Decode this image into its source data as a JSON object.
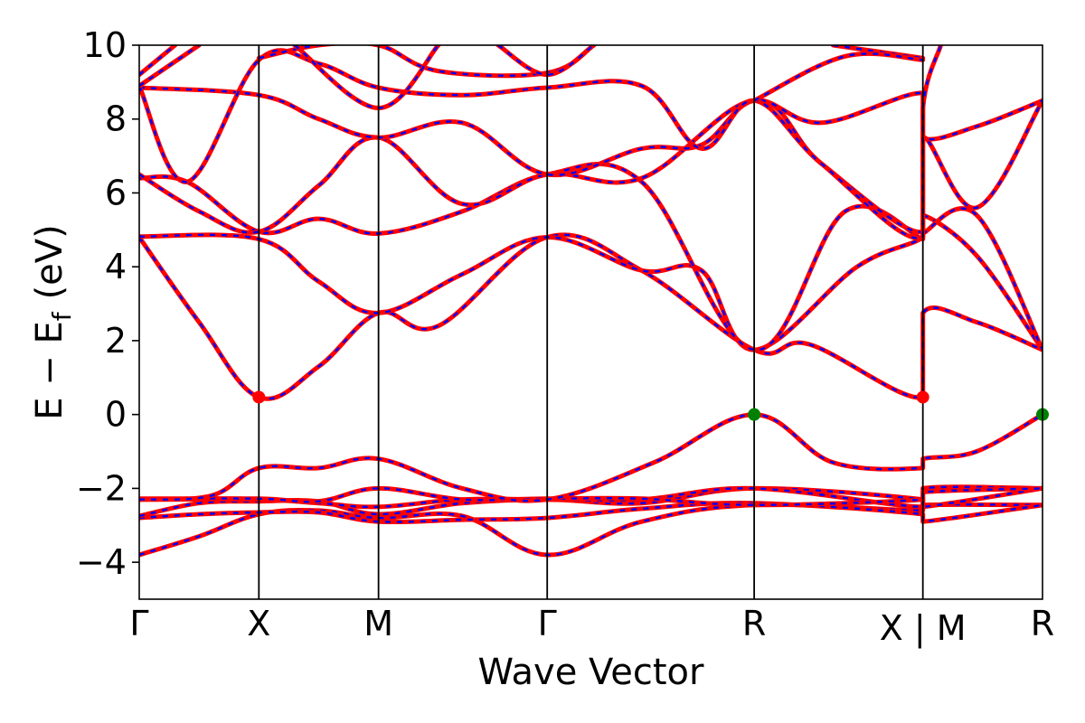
{
  "chart_data": {
    "type": "line",
    "title": "",
    "xlabel": "Wave Vector",
    "ylabel_main": "E − E",
    "ylabel_sub": "f",
    "ylabel_unit": "(eV)",
    "ylim": [
      -5,
      10
    ],
    "yticks": [
      -4,
      -2,
      0,
      2,
      4,
      6,
      8,
      10
    ],
    "ytick_labels": [
      "−4",
      "−2",
      "0",
      "2",
      "4",
      "6",
      "8",
      "10"
    ],
    "xlim": [
      0,
      7.55
    ],
    "kpoints": [
      {
        "label": "Γ",
        "x": 0.0
      },
      {
        "label": "X",
        "x": 1.0
      },
      {
        "label": "M",
        "x": 2.0
      },
      {
        "label": "Γ",
        "x": 3.41
      },
      {
        "label": "R",
        "x": 5.14
      },
      {
        "label": "X | M",
        "x": 6.55
      },
      {
        "label": "R",
        "x": 7.55
      }
    ],
    "grid": false,
    "legend": "none",
    "band_style": {
      "primary_color": "#ff0000",
      "overlay_color": "#0000ff",
      "overlay_dash": "dashed"
    },
    "special_points": [
      {
        "kind": "CBM",
        "color": "#ff0000",
        "x": 1.0,
        "y": 0.47
      },
      {
        "kind": "CBM",
        "color": "#ff0000",
        "x": 6.55,
        "y": 0.47
      },
      {
        "kind": "VBM",
        "color": "#008000",
        "x": 5.14,
        "y": 0.0
      },
      {
        "kind": "VBM",
        "color": "#008000",
        "x": 7.55,
        "y": 0.0
      }
    ],
    "series": [
      {
        "points": [
          [
            0,
            -3.8
          ],
          [
            0.5,
            -3.3
          ],
          [
            1,
            -2.7
          ],
          [
            1.5,
            -2.6
          ],
          [
            2,
            -2.8
          ],
          [
            2.7,
            -2.75
          ],
          [
            3.41,
            -3.8
          ],
          [
            4.2,
            -2.9
          ],
          [
            5.14,
            -2.45
          ],
          [
            6.55,
            -2.6
          ],
          [
            6.55,
            -2.45
          ],
          [
            7.55,
            -2.45
          ]
        ]
      },
      {
        "points": [
          [
            0,
            -2.8
          ],
          [
            0.5,
            -2.7
          ],
          [
            1,
            -2.65
          ],
          [
            1.5,
            -2.65
          ],
          [
            2,
            -2.9
          ],
          [
            2.7,
            -2.85
          ],
          [
            3.41,
            -2.8
          ],
          [
            4.2,
            -2.55
          ],
          [
            5.14,
            -2.4
          ],
          [
            6.55,
            -2.7
          ],
          [
            6.55,
            -2.9
          ],
          [
            7.55,
            -2.45
          ]
        ]
      },
      {
        "points": [
          [
            0,
            -2.75
          ],
          [
            0.5,
            -2.4
          ],
          [
            1,
            -2.35
          ],
          [
            1.5,
            -2.35
          ],
          [
            2,
            -2.7
          ],
          [
            2.7,
            -2.4
          ],
          [
            3.41,
            -2.3
          ],
          [
            4.2,
            -2.4
          ],
          [
            5.14,
            -2.0
          ],
          [
            6.55,
            -2.3
          ],
          [
            6.55,
            -2.5
          ],
          [
            7.55,
            -2.0
          ]
        ]
      },
      {
        "points": [
          [
            0,
            -2.3
          ],
          [
            1,
            -2.3
          ],
          [
            1.5,
            -2.4
          ],
          [
            2,
            -2.5
          ],
          [
            2.7,
            -2.3
          ],
          [
            3.41,
            -2.3
          ],
          [
            4.2,
            -2.3
          ],
          [
            5.14,
            -2.0
          ],
          [
            6.55,
            -2.5
          ],
          [
            6.55,
            -2.0
          ],
          [
            7.55,
            -2.0
          ]
        ]
      },
      {
        "points": [
          [
            0,
            -2.28
          ],
          [
            1,
            -2.28
          ],
          [
            1.5,
            -2.35
          ],
          [
            2,
            -2.0
          ],
          [
            2.7,
            -2.3
          ],
          [
            3.41,
            -2.28
          ],
          [
            4.2,
            -2.28
          ],
          [
            5.14,
            -2.45
          ],
          [
            6.55,
            -2.3
          ],
          [
            6.55,
            -2.1
          ],
          [
            7.55,
            -2.0
          ]
        ]
      },
      {
        "points": [
          [
            0,
            -2.3
          ],
          [
            0.6,
            -2.2
          ],
          [
            1,
            -1.45
          ],
          [
            1.5,
            -1.45
          ],
          [
            2,
            -1.2
          ],
          [
            2.7,
            -2.0
          ],
          [
            3.41,
            -2.3
          ],
          [
            4.3,
            -1.3
          ],
          [
            5.14,
            0.0
          ],
          [
            5.8,
            -1.3
          ],
          [
            6.55,
            -1.45
          ],
          [
            6.55,
            -1.2
          ],
          [
            7.0,
            -1.0
          ],
          [
            7.55,
            0.0
          ]
        ]
      },
      {
        "points": [
          [
            0,
            4.8
          ],
          [
            0.5,
            2.5
          ],
          [
            1,
            0.47
          ],
          [
            1.5,
            1.3
          ],
          [
            2,
            2.75
          ],
          [
            2.5,
            2.4
          ],
          [
            3.41,
            4.8
          ],
          [
            4.2,
            3.9
          ],
          [
            5.14,
            1.75
          ],
          [
            5.6,
            1.9
          ],
          [
            6.55,
            0.47
          ],
          [
            6.55,
            2.75
          ],
          [
            7.0,
            2.5
          ],
          [
            7.55,
            1.75
          ]
        ]
      },
      {
        "points": [
          [
            0,
            4.82
          ],
          [
            1,
            4.75
          ],
          [
            1.5,
            3.6
          ],
          [
            2,
            2.75
          ],
          [
            2.7,
            3.8
          ],
          [
            3.41,
            4.8
          ],
          [
            4.2,
            3.9
          ],
          [
            4.7,
            3.9
          ],
          [
            5.14,
            1.75
          ],
          [
            6.0,
            4.0
          ],
          [
            6.55,
            4.8
          ],
          [
            6.55,
            5.4
          ],
          [
            7.0,
            4.3
          ],
          [
            7.55,
            1.75
          ]
        ]
      },
      {
        "points": [
          [
            0,
            6.4
          ],
          [
            0.4,
            6.3
          ],
          [
            1,
            4.95
          ],
          [
            1.5,
            5.3
          ],
          [
            2,
            4.9
          ],
          [
            2.7,
            5.5
          ],
          [
            3.41,
            6.5
          ],
          [
            4.2,
            6.3
          ],
          [
            5.14,
            1.75
          ],
          [
            5.9,
            5.5
          ],
          [
            6.55,
            4.75
          ],
          [
            6.55,
            4.9
          ],
          [
            7.0,
            5.4
          ],
          [
            7.55,
            1.75
          ]
        ]
      },
      {
        "points": [
          [
            0,
            6.5
          ],
          [
            0.5,
            5.5
          ],
          [
            1,
            4.95
          ],
          [
            1.5,
            6.2
          ],
          [
            2,
            7.5
          ],
          [
            2.7,
            5.7
          ],
          [
            3.41,
            6.5
          ],
          [
            4.2,
            6.4
          ],
          [
            5.14,
            8.5
          ],
          [
            5.7,
            6.8
          ],
          [
            6.55,
            4.95
          ],
          [
            6.55,
            7.5
          ],
          [
            7.0,
            5.6
          ],
          [
            7.55,
            8.5
          ]
        ]
      },
      {
        "points": [
          [
            0,
            8.85
          ],
          [
            1,
            8.65
          ],
          [
            1.5,
            8.0
          ],
          [
            2,
            7.5
          ],
          [
            2.7,
            7.9
          ],
          [
            3.41,
            6.5
          ],
          [
            4.2,
            7.2
          ],
          [
            4.7,
            7.3
          ],
          [
            5.14,
            8.5
          ],
          [
            5.7,
            7.9
          ],
          [
            6.55,
            8.7
          ],
          [
            6.55,
            7.5
          ],
          [
            7.0,
            7.8
          ],
          [
            7.55,
            8.5
          ]
        ]
      },
      {
        "points": [
          [
            0,
            8.9
          ],
          [
            0.4,
            6.3
          ],
          [
            1,
            9.6
          ],
          [
            1.5,
            9.5
          ],
          [
            2,
            8.85
          ],
          [
            2.7,
            8.65
          ],
          [
            3.41,
            8.85
          ],
          [
            4.2,
            8.9
          ],
          [
            4.7,
            7.2
          ],
          [
            5.14,
            8.5
          ],
          [
            5.7,
            6.8
          ],
          [
            6.55,
            4.8
          ],
          [
            6.55,
            8.3
          ],
          [
            6.7,
            10.0
          ]
        ]
      },
      {
        "points": [
          [
            0,
            9.2
          ],
          [
            0.3,
            10.0
          ]
        ]
      },
      {
        "points": [
          [
            0,
            8.9
          ],
          [
            0.5,
            10.0
          ]
        ]
      },
      {
        "points": [
          [
            1,
            9.65
          ],
          [
            1.5,
            10.0
          ],
          [
            2,
            10.0
          ],
          [
            2.5,
            9.3
          ],
          [
            3.41,
            9.25
          ],
          [
            3.8,
            10.0
          ]
        ]
      },
      {
        "points": [
          [
            1.3,
            10.0
          ],
          [
            2,
            8.3
          ],
          [
            2.5,
            10.0
          ]
        ]
      },
      {
        "points": [
          [
            3.0,
            10.0
          ],
          [
            3.41,
            9.2
          ],
          [
            3.8,
            10.0
          ]
        ]
      },
      {
        "points": [
          [
            5.8,
            10.0
          ],
          [
            6.55,
            9.65
          ]
        ]
      },
      {
        "points": [
          [
            5.14,
            8.5
          ],
          [
            5.9,
            9.7
          ],
          [
            6.55,
            9.6
          ]
        ]
      }
    ]
  }
}
